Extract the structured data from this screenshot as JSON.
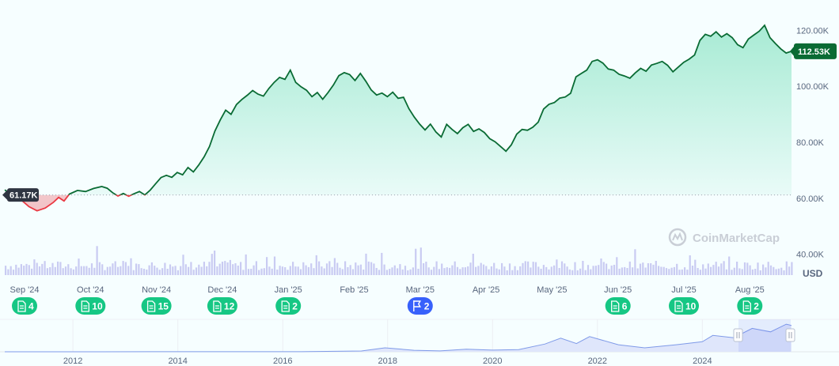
{
  "chart_data": {
    "type": "area",
    "currency_label": "USD",
    "watermark": "CoinMarketCap",
    "baseline_label": "61.17K",
    "baseline_value": 61170,
    "current_label": "112.53K",
    "current_value": 112530,
    "ylim": [
      30000,
      130000
    ],
    "y_ticks": [
      {
        "label": "120.00K",
        "value": 120000
      },
      {
        "label": "100.00K",
        "value": 100000
      },
      {
        "label": "80.00K",
        "value": 80000
      },
      {
        "label": "60.00K",
        "value": 60000
      },
      {
        "label": "40.00K",
        "value": 40000
      }
    ],
    "x_ticks": [
      "Sep '24",
      "Oct '24",
      "Nov '24",
      "Dec '24",
      "Jan '25",
      "Feb '25",
      "Mar '25",
      "Apr '25",
      "May '25",
      "Jun '25",
      "Jul '25",
      "Aug '25"
    ],
    "colors": {
      "up": "#16c784",
      "up_line": "#0a6b34",
      "down": "#ea3943",
      "volume": "#c9cbf2",
      "event": "#16c784",
      "event_flag": "#3861fb"
    },
    "events": [
      {
        "month": "Sep '24",
        "icon": "document-icon",
        "count": "4"
      },
      {
        "month": "Oct '24",
        "icon": "document-icon",
        "count": "10"
      },
      {
        "month": "Nov '24",
        "icon": "document-icon",
        "count": "15"
      },
      {
        "month": "Dec '24",
        "icon": "document-icon",
        "count": "12"
      },
      {
        "month": "Jan '25",
        "icon": "document-icon",
        "count": "2"
      },
      {
        "month": "Mar '25",
        "icon": "flag-icon",
        "count": "2"
      },
      {
        "month": "Jun '25",
        "icon": "document-icon",
        "count": "6"
      },
      {
        "month": "Jul '25",
        "icon": "document-icon",
        "count": "10"
      },
      {
        "month": "Aug '25",
        "icon": "document-icon",
        "count": "2"
      }
    ],
    "series": [
      {
        "values": [
          [
            0,
            63000
          ],
          [
            3,
            61200
          ],
          [
            6,
            59500
          ],
          [
            9,
            57000
          ],
          [
            12,
            55500
          ],
          [
            15,
            56500
          ],
          [
            18,
            58500
          ],
          [
            20,
            60300
          ],
          [
            22,
            59000
          ],
          [
            24,
            61500
          ],
          [
            27,
            62800
          ],
          [
            30,
            62400
          ],
          [
            33,
            63500
          ],
          [
            36,
            64200
          ],
          [
            38,
            63600
          ],
          [
            40,
            62000
          ],
          [
            42,
            60800
          ],
          [
            44,
            61700
          ],
          [
            46,
            60700
          ],
          [
            48,
            61600
          ],
          [
            50,
            62400
          ],
          [
            52,
            61200
          ],
          [
            54,
            62900
          ],
          [
            56,
            65200
          ],
          [
            58,
            67400
          ],
          [
            60,
            68200
          ],
          [
            62,
            67500
          ],
          [
            64,
            69200
          ],
          [
            66,
            68400
          ],
          [
            68,
            71000
          ],
          [
            70,
            69400
          ],
          [
            72,
            71900
          ],
          [
            74,
            74800
          ],
          [
            76,
            78500
          ],
          [
            78,
            84000
          ],
          [
            80,
            88000
          ],
          [
            82,
            91500
          ],
          [
            84,
            90000
          ],
          [
            86,
            93500
          ],
          [
            88,
            95300
          ],
          [
            90,
            96800
          ],
          [
            92,
            98500
          ],
          [
            94,
            97200
          ],
          [
            96,
            96500
          ],
          [
            98,
            99200
          ],
          [
            100,
            101400
          ],
          [
            102,
            103200
          ],
          [
            104,
            102500
          ],
          [
            106,
            105800
          ],
          [
            108,
            101400
          ],
          [
            110,
            99800
          ],
          [
            112,
            98600
          ],
          [
            114,
            96300
          ],
          [
            116,
            97800
          ],
          [
            118,
            95400
          ],
          [
            120,
            97800
          ],
          [
            122,
            100500
          ],
          [
            124,
            103800
          ],
          [
            126,
            104900
          ],
          [
            128,
            104200
          ],
          [
            130,
            102100
          ],
          [
            132,
            104600
          ],
          [
            134,
            101800
          ],
          [
            136,
            98700
          ],
          [
            138,
            96900
          ],
          [
            140,
            97600
          ],
          [
            142,
            96300
          ],
          [
            144,
            97900
          ],
          [
            146,
            95700
          ],
          [
            148,
            96100
          ],
          [
            150,
            92000
          ],
          [
            152,
            89000
          ],
          [
            154,
            86500
          ],
          [
            156,
            84400
          ],
          [
            158,
            86500
          ],
          [
            160,
            83700
          ],
          [
            162,
            81900
          ],
          [
            164,
            86400
          ],
          [
            166,
            84600
          ],
          [
            168,
            83100
          ],
          [
            170,
            85200
          ],
          [
            172,
            86400
          ],
          [
            174,
            83900
          ],
          [
            176,
            84800
          ],
          [
            178,
            83500
          ],
          [
            180,
            81300
          ],
          [
            182,
            80200
          ],
          [
            184,
            78500
          ],
          [
            186,
            76800
          ],
          [
            188,
            79100
          ],
          [
            190,
            82900
          ],
          [
            192,
            84600
          ],
          [
            194,
            84300
          ],
          [
            196,
            85400
          ],
          [
            198,
            87200
          ],
          [
            200,
            91900
          ],
          [
            202,
            93600
          ],
          [
            204,
            94200
          ],
          [
            206,
            95800
          ],
          [
            208,
            96200
          ],
          [
            210,
            97500
          ],
          [
            212,
            103400
          ],
          [
            214,
            104600
          ],
          [
            216,
            105800
          ],
          [
            218,
            108900
          ],
          [
            220,
            109500
          ],
          [
            222,
            108300
          ],
          [
            224,
            106200
          ],
          [
            226,
            105800
          ],
          [
            228,
            104300
          ],
          [
            230,
            103700
          ],
          [
            232,
            102900
          ],
          [
            234,
            104800
          ],
          [
            236,
            106400
          ],
          [
            238,
            105400
          ],
          [
            240,
            107600
          ],
          [
            242,
            108200
          ],
          [
            244,
            108900
          ],
          [
            246,
            107500
          ],
          [
            248,
            105200
          ],
          [
            250,
            106900
          ],
          [
            252,
            108600
          ],
          [
            254,
            109700
          ],
          [
            256,
            111200
          ],
          [
            258,
            116400
          ],
          [
            260,
            118600
          ],
          [
            262,
            117900
          ],
          [
            264,
            119500
          ],
          [
            266,
            117600
          ],
          [
            268,
            118800
          ],
          [
            270,
            117400
          ],
          [
            272,
            114900
          ],
          [
            274,
            113800
          ],
          [
            276,
            116900
          ],
          [
            278,
            118300
          ],
          [
            280,
            119700
          ],
          [
            282,
            121800
          ],
          [
            284,
            117400
          ],
          [
            286,
            115300
          ],
          [
            288,
            113400
          ],
          [
            290,
            111900
          ],
          [
            292,
            112530
          ]
        ]
      }
    ],
    "history": {
      "x_ticks": [
        "2012",
        "2014",
        "2016",
        "2018",
        "2020",
        "2022",
        "2024"
      ],
      "values": [
        [
          2010.7,
          0.01
        ],
        [
          2011.5,
          5
        ],
        [
          2012.5,
          10
        ],
        [
          2013.5,
          200
        ],
        [
          2014.5,
          400
        ],
        [
          2015.5,
          250
        ],
        [
          2016.5,
          650
        ],
        [
          2017.5,
          3500
        ],
        [
          2017.95,
          17000
        ],
        [
          2018.5,
          6500
        ],
        [
          2019.0,
          3700
        ],
        [
          2019.5,
          11000
        ],
        [
          2020.0,
          7200
        ],
        [
          2020.5,
          9500
        ],
        [
          2021.0,
          33000
        ],
        [
          2021.3,
          58000
        ],
        [
          2021.6,
          35000
        ],
        [
          2021.85,
          65000
        ],
        [
          2022.4,
          30000
        ],
        [
          2022.9,
          16800
        ],
        [
          2023.5,
          30000
        ],
        [
          2024.0,
          43000
        ],
        [
          2024.2,
          70000
        ],
        [
          2024.6,
          60000
        ],
        [
          2024.95,
          100000
        ],
        [
          2025.3,
          85000
        ],
        [
          2025.6,
          118000
        ],
        [
          2025.7,
          112530
        ]
      ]
    }
  }
}
